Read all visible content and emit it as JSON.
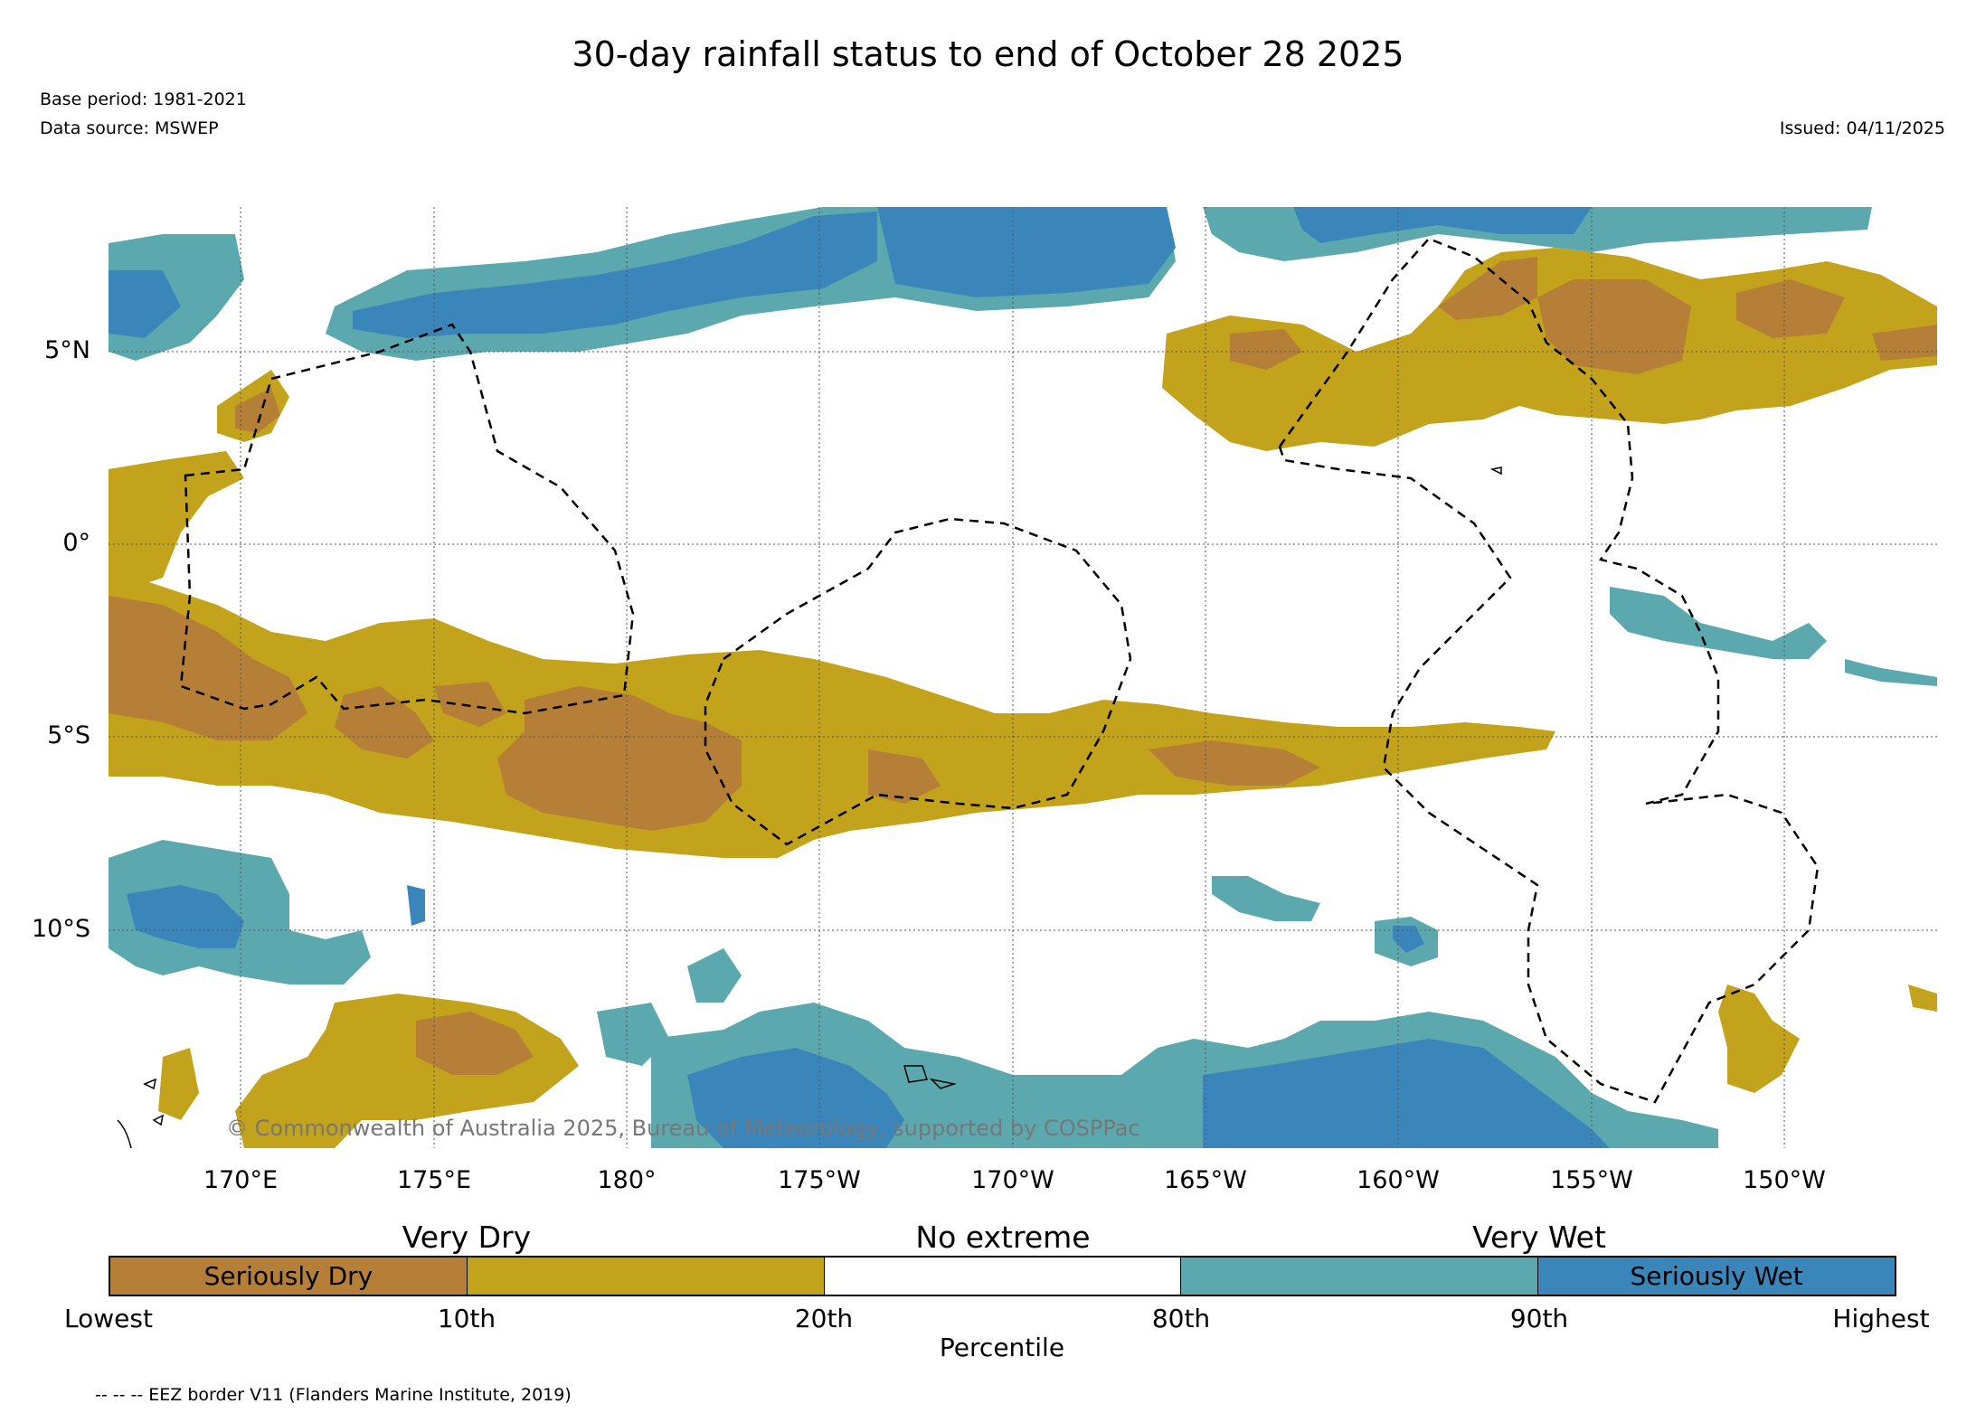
{
  "header": {
    "title": "30-day rainfall status to end of October 28 2025",
    "base_period": "Base period: 1981-2021",
    "data_source": "Data source: MSWEP",
    "issued": "Issued: 04/11/2025"
  },
  "map": {
    "lat_labels": [
      "5°N",
      "0°",
      "5°S",
      "10°S"
    ],
    "lon_labels": [
      "170°E",
      "175°E",
      "180°",
      "175°W",
      "170°W",
      "165°W",
      "160°W",
      "155°W",
      "150°W"
    ],
    "copyright": "© Commonwealth of Australia 2025, Bureau of Meteorology, supported by COSPPac",
    "colors": {
      "seriously_dry": "#B57F38",
      "very_dry": "#C3A31C",
      "no_extreme": "#FFFFFF",
      "very_wet": "#5BA8AE",
      "seriously_wet": "#3A86BA"
    }
  },
  "legend": {
    "headings": {
      "very_dry": "Very Dry",
      "no_extreme": "No extreme",
      "very_wet": "Very Wet"
    },
    "segments": [
      "Seriously Dry",
      "",
      "",
      "",
      "Seriously Wet"
    ],
    "ticks": [
      "Lowest",
      "10th",
      "20th",
      "80th",
      "90th",
      "Highest"
    ],
    "axis_label": "Percentile"
  },
  "footnote": "-- -- -- EEZ border V11 (Flanders Marine Institute, 2019)"
}
